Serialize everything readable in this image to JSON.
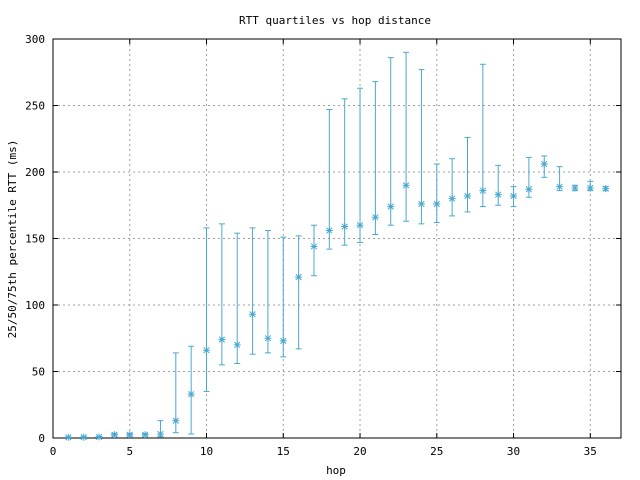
{
  "chart_data": {
    "type": "scatter",
    "title": "RTT quartiles vs hop distance",
    "xlabel": "hop",
    "ylabel": "25/50/75th percentile RTT (ms)",
    "xlim": [
      0,
      37
    ],
    "ylim": [
      0,
      300
    ],
    "xticks": [
      0,
      5,
      10,
      15,
      20,
      25,
      30,
      35
    ],
    "yticks": [
      0,
      50,
      100,
      150,
      200,
      250,
      300
    ],
    "grid": true,
    "legend": "none",
    "series_color": "#4aa8d0",
    "series": [
      {
        "points": [
          {
            "x": 1,
            "p25": 0.3,
            "p50": 0.5,
            "p75": 0.8
          },
          {
            "x": 2,
            "p25": 0.3,
            "p50": 0.6,
            "p75": 1
          },
          {
            "x": 3,
            "p25": 0.4,
            "p50": 0.8,
            "p75": 1.2
          },
          {
            "x": 4,
            "p25": 1.5,
            "p50": 2.5,
            "p75": 3.5
          },
          {
            "x": 5,
            "p25": 1.5,
            "p50": 2.5,
            "p75": 3.5
          },
          {
            "x": 6,
            "p25": 1.5,
            "p50": 2.5,
            "p75": 3.5
          },
          {
            "x": 7,
            "p25": 1,
            "p50": 3,
            "p75": 13
          },
          {
            "x": 8,
            "p25": 4,
            "p50": 13,
            "p75": 64
          },
          {
            "x": 9,
            "p25": 3,
            "p50": 33,
            "p75": 69
          },
          {
            "x": 10,
            "p25": 35,
            "p50": 66,
            "p75": 158
          },
          {
            "x": 11,
            "p25": 55,
            "p50": 74,
            "p75": 161
          },
          {
            "x": 12,
            "p25": 56,
            "p50": 70,
            "p75": 154
          },
          {
            "x": 13,
            "p25": 63,
            "p50": 93,
            "p75": 158
          },
          {
            "x": 14,
            "p25": 64,
            "p50": 75,
            "p75": 156
          },
          {
            "x": 15,
            "p25": 61,
            "p50": 73,
            "p75": 151
          },
          {
            "x": 16,
            "p25": 67,
            "p50": 121,
            "p75": 152
          },
          {
            "x": 17,
            "p25": 122,
            "p50": 144,
            "p75": 160
          },
          {
            "x": 18,
            "p25": 142,
            "p50": 156,
            "p75": 247
          },
          {
            "x": 19,
            "p25": 145,
            "p50": 159,
            "p75": 255
          },
          {
            "x": 20,
            "p25": 147,
            "p50": 160,
            "p75": 263
          },
          {
            "x": 21,
            "p25": 153,
            "p50": 166,
            "p75": 268
          },
          {
            "x": 22,
            "p25": 160,
            "p50": 174,
            "p75": 286
          },
          {
            "x": 23,
            "p25": 163,
            "p50": 190,
            "p75": 290
          },
          {
            "x": 24,
            "p25": 161,
            "p50": 176,
            "p75": 277
          },
          {
            "x": 25,
            "p25": 162,
            "p50": 176,
            "p75": 206
          },
          {
            "x": 26,
            "p25": 167,
            "p50": 180,
            "p75": 210
          },
          {
            "x": 27,
            "p25": 170,
            "p50": 182,
            "p75": 226
          },
          {
            "x": 28,
            "p25": 174,
            "p50": 186,
            "p75": 281
          },
          {
            "x": 29,
            "p25": 175,
            "p50": 183,
            "p75": 205
          },
          {
            "x": 30,
            "p25": 174,
            "p50": 182,
            "p75": 189
          },
          {
            "x": 31,
            "p25": 181,
            "p50": 187,
            "p75": 211
          },
          {
            "x": 32,
            "p25": 196,
            "p50": 206,
            "p75": 212
          },
          {
            "x": 33,
            "p25": 186,
            "p50": 189,
            "p75": 204
          },
          {
            "x": 34,
            "p25": 186,
            "p50": 188,
            "p75": 190
          },
          {
            "x": 35,
            "p25": 186,
            "p50": 188,
            "p75": 193
          },
          {
            "x": 36,
            "p25": 186,
            "p50": 187.5,
            "p75": 189
          }
        ]
      }
    ]
  }
}
